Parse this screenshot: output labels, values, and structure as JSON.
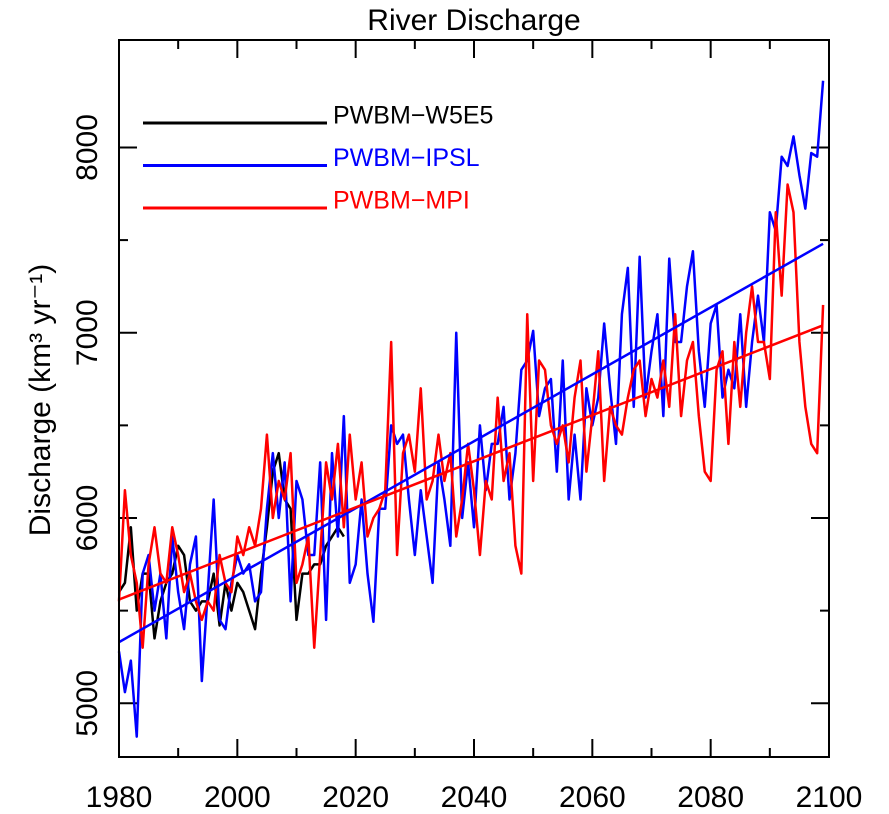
{
  "chart_data": {
    "type": "line",
    "title": "River Discharge",
    "ylabel": "Discharge (km³ yr⁻¹)",
    "x": [
      1980,
      1981,
      1982,
      1983,
      1984,
      1985,
      1986,
      1987,
      1988,
      1989,
      1990,
      1991,
      1992,
      1993,
      1994,
      1995,
      1996,
      1997,
      1998,
      1999,
      2000,
      2001,
      2002,
      2003,
      2004,
      2005,
      2006,
      2007,
      2008,
      2009,
      2010,
      2011,
      2012,
      2013,
      2014,
      2015,
      2016,
      2017,
      2018,
      2019,
      2020,
      2021,
      2022,
      2023,
      2024,
      2025,
      2026,
      2027,
      2028,
      2029,
      2030,
      2031,
      2032,
      2033,
      2034,
      2035,
      2036,
      2037,
      2038,
      2039,
      2040,
      2041,
      2042,
      2043,
      2044,
      2045,
      2046,
      2047,
      2048,
      2049,
      2050,
      2051,
      2052,
      2053,
      2054,
      2055,
      2056,
      2057,
      2058,
      2059,
      2060,
      2061,
      2062,
      2063,
      2064,
      2065,
      2066,
      2067,
      2068,
      2069,
      2070,
      2071,
      2072,
      2073,
      2074,
      2075,
      2076,
      2077,
      2078,
      2079,
      2080,
      2081,
      2082,
      2083,
      2084,
      2085,
      2086,
      2087,
      2088,
      2089,
      2090,
      2091,
      2092,
      2093,
      2094,
      2095,
      2096,
      2097,
      2098,
      2099
    ],
    "series": [
      {
        "name": "PWBM−W5E5",
        "color": "#000000",
        "values": [
          5600,
          5650,
          5950,
          5500,
          5700,
          5700,
          5350,
          5550,
          5650,
          5700,
          5850,
          5800,
          5550,
          5500,
          5550,
          5550,
          5700,
          5420,
          5650,
          5500,
          5650,
          5600,
          5500,
          5400,
          5700,
          5950,
          6250,
          6350,
          6100,
          6050,
          5450,
          5700,
          5700,
          5750,
          5750,
          5850,
          5900,
          5950,
          5900,
          null,
          null,
          null,
          null,
          null,
          null,
          null,
          null,
          null,
          null,
          null,
          null,
          null,
          null,
          null,
          null,
          null,
          null,
          null,
          null,
          null,
          null,
          null,
          null,
          null,
          null,
          null,
          null,
          null,
          null,
          null,
          null,
          null,
          null,
          null,
          null,
          null,
          null,
          null,
          null,
          null,
          null,
          null,
          null,
          null,
          null,
          null,
          null,
          null,
          null,
          null,
          null,
          null,
          null,
          null,
          null,
          null,
          null,
          null,
          null,
          null,
          null,
          null,
          null,
          null,
          null,
          null,
          null,
          null,
          null,
          null,
          null,
          null,
          null,
          null,
          null,
          null,
          null,
          null,
          null,
          null
        ]
      },
      {
        "name": "PWBM−IPSL",
        "color": "#0000ff",
        "values": [
          5280,
          5060,
          5230,
          4820,
          5700,
          5800,
          5500,
          5700,
          5350,
          5900,
          5600,
          5400,
          5750,
          5900,
          5120,
          5600,
          6100,
          5450,
          5400,
          5650,
          5800,
          5700,
          5750,
          5550,
          5600,
          6050,
          6350,
          6000,
          6300,
          5550,
          6200,
          6100,
          5800,
          5800,
          6300,
          5450,
          6350,
          5900,
          6550,
          5650,
          5750,
          6100,
          5700,
          5440,
          6050,
          6050,
          6500,
          6400,
          6450,
          6100,
          5800,
          6150,
          5900,
          5650,
          6300,
          6100,
          5850,
          7000,
          6000,
          6300,
          5950,
          6500,
          6150,
          6400,
          6400,
          6600,
          6100,
          6350,
          6800,
          6850,
          7010,
          6550,
          6700,
          6750,
          6250,
          6850,
          6100,
          6450,
          6100,
          6700,
          6500,
          6650,
          7050,
          6700,
          6400,
          7100,
          7350,
          6600,
          7410,
          6650,
          6900,
          7100,
          6550,
          7400,
          6950,
          6950,
          7250,
          7440,
          6900,
          6600,
          7050,
          7150,
          6650,
          6800,
          6700,
          7100,
          6600,
          6950,
          7200,
          6950,
          7650,
          7550,
          7950,
          7900,
          8060,
          7850,
          7670,
          7970,
          7950,
          8360
        ]
      },
      {
        "name": "PWBM−MPI",
        "color": "#ff0000",
        "values": [
          5550,
          6150,
          5800,
          5650,
          5300,
          5750,
          5950,
          5700,
          5650,
          5950,
          5800,
          5600,
          5700,
          5550,
          5450,
          5550,
          5500,
          5800,
          5650,
          5600,
          5900,
          5800,
          5950,
          5850,
          6050,
          6450,
          6000,
          6200,
          6100,
          6350,
          5650,
          5750,
          5900,
          5300,
          5800,
          6300,
          6100,
          6400,
          5950,
          6450,
          6100,
          6300,
          5900,
          6000,
          6050,
          6150,
          6950,
          5800,
          6350,
          6450,
          6250,
          6700,
          6100,
          6200,
          6450,
          6200,
          6350,
          5900,
          6100,
          6400,
          6150,
          5800,
          6200,
          6100,
          6650,
          6200,
          6350,
          5850,
          5700,
          7100,
          6200,
          6850,
          6800,
          6500,
          6400,
          6500,
          6300,
          6650,
          6850,
          6250,
          6550,
          6900,
          6200,
          6600,
          6500,
          6450,
          6650,
          6800,
          6850,
          6550,
          6750,
          6650,
          6850,
          6600,
          7100,
          6550,
          6850,
          6950,
          6550,
          6250,
          6200,
          6800,
          6900,
          6400,
          6950,
          6600,
          7000,
          7250,
          6950,
          6950,
          6750,
          7650,
          7200,
          7800,
          7650,
          6950,
          6600,
          6400,
          6350,
          7150
        ]
      }
    ],
    "trends": [
      {
        "color": "#0000ff",
        "x": [
          1980,
          2099
        ],
        "values": [
          5330,
          7480
        ]
      },
      {
        "color": "#ff0000",
        "x": [
          1980,
          2099
        ],
        "values": [
          5560,
          7040
        ]
      }
    ],
    "xlim": [
      1980,
      2100
    ],
    "xticks": [
      1980,
      2000,
      2020,
      2040,
      2060,
      2080,
      2100
    ],
    "xminorticks": [
      1990,
      2010,
      2030,
      2050,
      2070,
      2090
    ],
    "ylim": [
      4710,
      8580
    ],
    "yticks": [
      5000,
      6000,
      7000,
      8000
    ],
    "yminorticks": [
      5500,
      6500,
      7500
    ],
    "legend": "upper left"
  }
}
